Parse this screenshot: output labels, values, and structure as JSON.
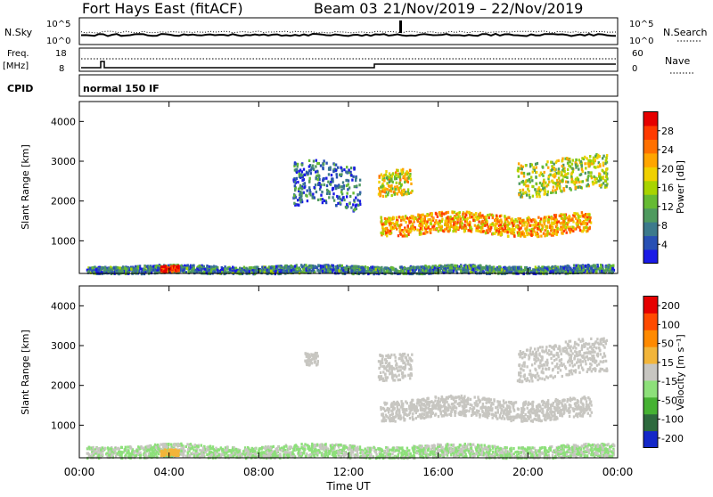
{
  "header": {
    "radar": "Fort Hays East (fitACF)",
    "beam": "Beam 03",
    "dates": "21/Nov/2019 – 22/Nov/2019"
  },
  "noise_panel": {
    "left_label": "N.Sky",
    "right_label": "N.Search",
    "tick_high": "10^5",
    "tick_low": "10^0"
  },
  "freq_panel": {
    "left_label": "Freq.",
    "left_unit": "[MHz]",
    "left_tick_high": "18",
    "left_tick_low": "8",
    "right_label": "Nave",
    "right_tick_high": "60",
    "right_tick_low": "0"
  },
  "cpid": {
    "label": "CPID",
    "mode": "normal 150 IF"
  },
  "x_axis": {
    "label": "Time UT",
    "ticks": [
      "00:00",
      "04:00",
      "08:00",
      "12:00",
      "16:00",
      "20:00",
      "00:00"
    ]
  },
  "chart_data": [
    {
      "type": "heatmap",
      "title": "",
      "ylabel": "Slant Range [km]",
      "xlabel": "",
      "x_range_hours": [
        0,
        24
      ],
      "ylim": [
        180,
        4500
      ],
      "yticks": [
        1000,
        2000,
        3000,
        4000
      ],
      "colorbar": {
        "label": "Power [dB]",
        "ticks": [
          "4",
          "8",
          "12",
          "16",
          "20",
          "24",
          "28"
        ],
        "range": [
          0,
          32
        ],
        "colors": [
          "#1a1ae6",
          "#2850b4",
          "#3c7a8c",
          "#4f9a5f",
          "#66bb33",
          "#a8d400",
          "#f0d000",
          "#ffa500",
          "#ff7000",
          "#ff3a00",
          "#e60000"
        ]
      },
      "echo_regions": [
        {
          "name": "near-range band",
          "t_start": 0.3,
          "t_end": 23.8,
          "r_min": 200,
          "r_max": 400,
          "power": 8
        },
        {
          "name": "evening blob",
          "t_start": 3.6,
          "t_end": 4.4,
          "r_min": 230,
          "r_max": 380,
          "power": 30
        },
        {
          "name": "main band",
          "t_start": 13.4,
          "t_end": 22.8,
          "r_min": 1200,
          "r_max": 1700,
          "power": 22
        },
        {
          "name": "upper patch A",
          "t_start": 13.3,
          "t_end": 14.8,
          "r_min": 2250,
          "r_max": 2900,
          "power": 18
        },
        {
          "name": "upper patch B",
          "t_start": 19.5,
          "t_end": 23.5,
          "r_min": 2250,
          "r_max": 3100,
          "power": 16
        },
        {
          "name": "sparse scatter",
          "t_start": 9.5,
          "t_end": 12.5,
          "r_min": 1800,
          "r_max": 2900,
          "power": 6
        }
      ]
    },
    {
      "type": "heatmap",
      "title": "",
      "ylabel": "Slant Range [km]",
      "xlabel": "Time UT",
      "x_range_hours": [
        0,
        24
      ],
      "ylim": [
        180,
        4500
      ],
      "yticks": [
        1000,
        2000,
        3000,
        4000
      ],
      "colorbar": {
        "label": "Velocity [m s⁻¹]",
        "ticks": [
          "200",
          "100",
          "50",
          "15",
          "-15",
          "-50",
          "-100",
          "-200"
        ],
        "range": [
          -250,
          250
        ],
        "colors": [
          "#1428c8",
          "#2e6a3e",
          "#46b233",
          "#8de07a",
          "#c7c6c1",
          "#f2b53a",
          "#ff8a00",
          "#ff4a00",
          "#e60000"
        ]
      },
      "echo_regions": [
        {
          "name": "near-range band",
          "t_start": 0.3,
          "t_end": 23.8,
          "r_min": 200,
          "r_max": 520,
          "velocity": -30
        },
        {
          "name": "evening blob",
          "t_start": 3.6,
          "t_end": 4.4,
          "r_min": 250,
          "r_max": 400,
          "velocity": 60
        },
        {
          "name": "ground scatter band",
          "t_start": 13.4,
          "t_end": 22.8,
          "r_min": 1200,
          "r_max": 1700,
          "velocity": 0
        },
        {
          "name": "ground scatter upper A",
          "t_start": 13.3,
          "t_end": 14.8,
          "r_min": 2250,
          "r_max": 2900,
          "velocity": 0
        },
        {
          "name": "ground scatter upper B",
          "t_start": 19.5,
          "t_end": 23.5,
          "r_min": 2250,
          "r_max": 3100,
          "velocity": 0
        },
        {
          "name": "scatter blob",
          "t_start": 10.0,
          "t_end": 10.6,
          "r_min": 2500,
          "r_max": 2800,
          "velocity": 0
        }
      ]
    }
  ]
}
